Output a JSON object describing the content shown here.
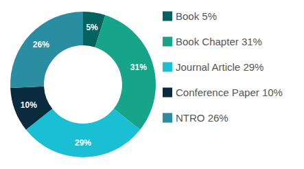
{
  "chart_data": {
    "type": "pie",
    "donut": true,
    "categories": [
      "Book 5%",
      "Book Chapter 31%",
      "Journal Article 29%",
      "Conference Paper 10%",
      "NTRO 26%"
    ],
    "values": [
      5,
      31,
      29,
      10,
      26
    ],
    "value_labels": [
      "5%",
      "31%",
      "29%",
      "10%",
      "26%"
    ],
    "colors": [
      "#05635f",
      "#17a58a",
      "#1bbfd3",
      "#0a2a3d",
      "#2b8da1"
    ],
    "data_labels": true,
    "legend": "right"
  }
}
